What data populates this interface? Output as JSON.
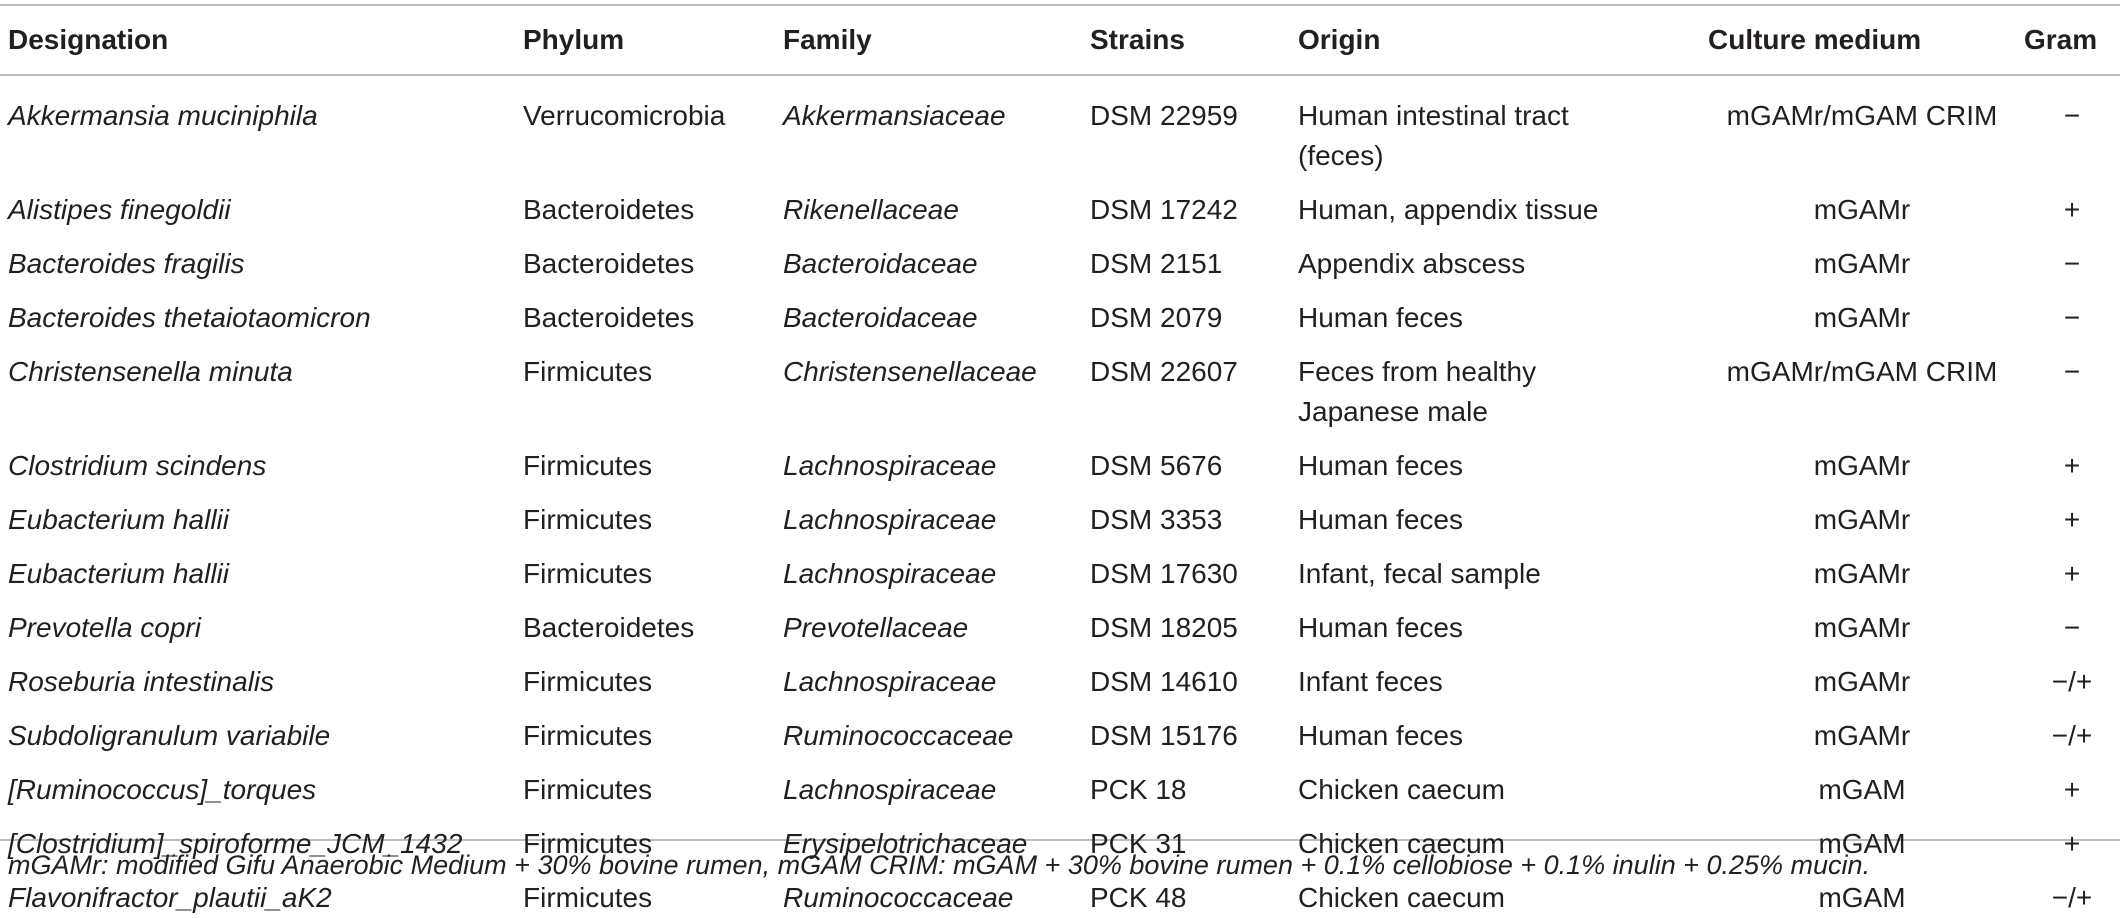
{
  "table": {
    "headers": [
      "Designation",
      "Phylum",
      "Family",
      "Strains",
      "Origin",
      "Culture medium",
      "Gram"
    ],
    "rows": [
      {
        "designation": "Akkermansia muciniphila",
        "phylum": "Verrucomicrobia",
        "family": "Akkermansiaceae",
        "strain": "DSM 22959",
        "origin_line1": "Human intestinal tract",
        "origin_line2": "(feces)",
        "medium": "mGAMr/mGAM CRIM",
        "gram": "−"
      },
      {
        "designation": "Alistipes finegoldii",
        "phylum": "Bacteroidetes",
        "family": "Rikenellaceae",
        "strain": "DSM 17242",
        "origin_line1": "Human, appendix tissue",
        "origin_line2": "",
        "medium": "mGAMr",
        "gram": "+"
      },
      {
        "designation": "Bacteroides fragilis",
        "phylum": "Bacteroidetes",
        "family": "Bacteroidaceae",
        "strain": "DSM 2151",
        "origin_line1": "Appendix abscess",
        "origin_line2": "",
        "medium": "mGAMr",
        "gram": "−"
      },
      {
        "designation": "Bacteroides thetaiotaomicron",
        "phylum": "Bacteroidetes",
        "family": "Bacteroidaceae",
        "strain": "DSM 2079",
        "origin_line1": "Human feces",
        "origin_line2": "",
        "medium": "mGAMr",
        "gram": "−"
      },
      {
        "designation": "Christensenella minuta",
        "phylum": "Firmicutes",
        "family": "Christensenellaceae",
        "strain": "DSM 22607",
        "origin_line1": "Feces from healthy",
        "origin_line2": "Japanese male",
        "medium": "mGAMr/mGAM CRIM",
        "gram": "−"
      },
      {
        "designation": "Clostridium scindens",
        "phylum": "Firmicutes",
        "family": "Lachnospiraceae",
        "strain": "DSM 5676",
        "origin_line1": "Human feces",
        "origin_line2": "",
        "medium": "mGAMr",
        "gram": "+"
      },
      {
        "designation": "Eubacterium hallii",
        "phylum": "Firmicutes",
        "family": "Lachnospiraceae",
        "strain": "DSM 3353",
        "origin_line1": "Human feces",
        "origin_line2": "",
        "medium": "mGAMr",
        "gram": "+"
      },
      {
        "designation": "Eubacterium hallii",
        "phylum": "Firmicutes",
        "family": "Lachnospiraceae",
        "strain": "DSM 17630",
        "origin_line1": "Infant, fecal sample",
        "origin_line2": "",
        "medium": "mGAMr",
        "gram": "+"
      },
      {
        "designation": "Prevotella copri",
        "phylum": "Bacteroidetes",
        "family": "Prevotellaceae",
        "strain": "DSM 18205",
        "origin_line1": "Human feces",
        "origin_line2": "",
        "medium": "mGAMr",
        "gram": "−"
      },
      {
        "designation": "Roseburia intestinalis",
        "phylum": "Firmicutes",
        "family": "Lachnospiraceae",
        "strain": "DSM 14610",
        "origin_line1": "Infant feces",
        "origin_line2": "",
        "medium": "mGAMr",
        "gram": "−/+"
      },
      {
        "designation": "Subdoligranulum variabile",
        "phylum": "Firmicutes",
        "family": "Ruminococcaceae",
        "strain": "DSM 15176",
        "origin_line1": "Human feces",
        "origin_line2": "",
        "medium": "mGAMr",
        "gram": "−/+"
      },
      {
        "designation": "[Ruminococcus]_torques",
        "phylum": "Firmicutes",
        "family": "Lachnospiraceae",
        "strain": "PCK 18",
        "origin_line1": "Chicken caecum",
        "origin_line2": "",
        "medium": "mGAM",
        "gram": "+"
      },
      {
        "designation": "[Clostridium]_spiroforme_JCM_1432",
        "phylum": "Firmicutes",
        "family": "Erysipelotrichaceae",
        "strain": "PCK 31",
        "origin_line1": "Chicken caecum",
        "origin_line2": "",
        "medium": "mGAM",
        "gram": "+"
      },
      {
        "designation": "Flavonifractor_plautii_aK2",
        "phylum": "Firmicutes",
        "family": "Ruminococcaceae",
        "strain": "PCK 48",
        "origin_line1": "Chicken caecum",
        "origin_line2": "",
        "medium": "mGAM",
        "gram": "−/+"
      }
    ]
  },
  "footnote": "mGAMr: modified Gifu Anaerobic Medium + 30% bovine rumen, mGAM CRIM: mGAM + 30% bovine rumen + 0.1% cellobiose + 0.1% inulin + 0.25% mucin."
}
